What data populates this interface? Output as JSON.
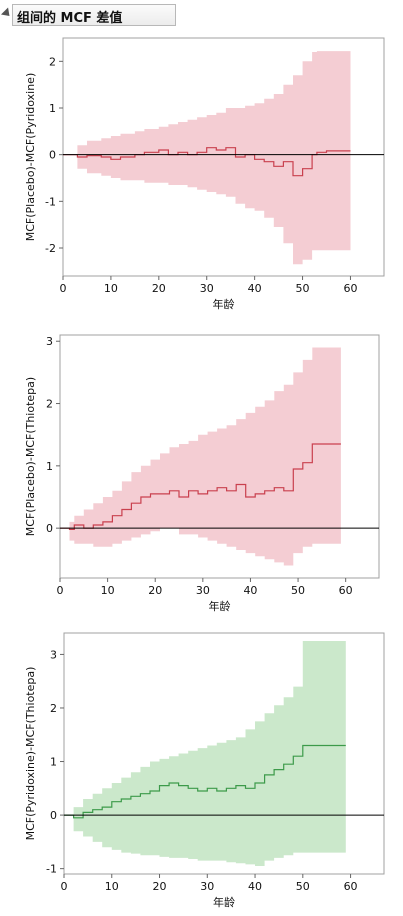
{
  "header": {
    "title": "组间的 MCF 差值"
  },
  "chart_data": [
    {
      "type": "line",
      "xlabel": "年龄",
      "ylabel": "MCF(Placebo)-MCF(Pyridoxine)",
      "xlim": [
        0,
        67
      ],
      "ylim": [
        -2.6,
        2.5
      ],
      "xticks": [
        0,
        10,
        20,
        30,
        40,
        50,
        60
      ],
      "yticks": [
        -2,
        -1,
        0,
        1,
        2
      ],
      "line_color": "#c9404e",
      "band_color": "#f4cdd3",
      "series": [
        {
          "x": [
            0,
            3,
            5,
            8,
            10,
            12,
            15,
            17,
            20,
            22,
            24,
            26,
            28,
            30,
            32,
            34,
            36,
            38,
            40,
            42,
            44,
            46,
            48,
            50,
            52,
            53,
            55,
            60
          ],
          "y": [
            0,
            -0.05,
            -0.02,
            -0.05,
            -0.1,
            -0.05,
            0,
            0.05,
            0.1,
            0,
            0.05,
            0,
            0.05,
            0.15,
            0.1,
            0.15,
            -0.05,
            0,
            -0.1,
            -0.15,
            -0.25,
            -0.15,
            -0.45,
            -0.3,
            0,
            0.05,
            0.08,
            0.08
          ],
          "upper": [
            0,
            0.2,
            0.3,
            0.35,
            0.4,
            0.45,
            0.5,
            0.55,
            0.6,
            0.65,
            0.7,
            0.75,
            0.8,
            0.85,
            0.9,
            1.0,
            1.0,
            1.05,
            1.1,
            1.2,
            1.3,
            1.5,
            1.7,
            2.0,
            2.2,
            2.22,
            2.22,
            2.22
          ],
          "lower": [
            0,
            -0.3,
            -0.4,
            -0.45,
            -0.5,
            -0.55,
            -0.55,
            -0.6,
            -0.6,
            -0.65,
            -0.65,
            -0.7,
            -0.75,
            -0.8,
            -0.85,
            -0.9,
            -1.05,
            -1.15,
            -1.2,
            -1.35,
            -1.55,
            -1.9,
            -2.35,
            -2.25,
            -2.05,
            -2.05,
            -2.05,
            -2.05
          ]
        }
      ]
    },
    {
      "type": "line",
      "xlabel": "年龄",
      "ylabel": "MCF(Placebo)-MCF(Thiotepa)",
      "xlim": [
        0,
        67
      ],
      "ylim": [
        -0.8,
        3.1
      ],
      "xticks": [
        0,
        10,
        20,
        30,
        40,
        50,
        60
      ],
      "yticks": [
        0,
        1,
        2,
        3
      ],
      "line_color": "#c9404e",
      "band_color": "#f4cdd3",
      "series": [
        {
          "x": [
            0,
            2,
            3,
            5,
            7,
            9,
            11,
            13,
            15,
            17,
            19,
            21,
            23,
            25,
            27,
            29,
            31,
            33,
            35,
            37,
            39,
            41,
            43,
            45,
            47,
            49,
            51,
            53,
            55,
            59
          ],
          "y": [
            0,
            -0.02,
            0.05,
            0,
            0.05,
            0.1,
            0.2,
            0.3,
            0.4,
            0.5,
            0.55,
            0.55,
            0.6,
            0.5,
            0.6,
            0.55,
            0.6,
            0.65,
            0.6,
            0.7,
            0.5,
            0.55,
            0.6,
            0.65,
            0.6,
            0.95,
            1.05,
            1.35,
            1.35,
            1.35
          ],
          "upper": [
            0,
            0.1,
            0.2,
            0.3,
            0.4,
            0.5,
            0.6,
            0.75,
            0.9,
            1.0,
            1.1,
            1.2,
            1.3,
            1.35,
            1.4,
            1.5,
            1.55,
            1.6,
            1.65,
            1.75,
            1.85,
            1.95,
            2.05,
            2.2,
            2.3,
            2.5,
            2.7,
            2.9,
            2.9,
            2.9
          ],
          "lower": [
            0,
            -0.2,
            -0.25,
            -0.25,
            -0.3,
            -0.3,
            -0.25,
            -0.2,
            -0.15,
            -0.1,
            -0.05,
            0,
            0,
            -0.1,
            -0.1,
            -0.15,
            -0.2,
            -0.25,
            -0.3,
            -0.35,
            -0.4,
            -0.45,
            -0.5,
            -0.55,
            -0.6,
            -0.4,
            -0.3,
            -0.25,
            -0.25,
            -0.25
          ]
        }
      ]
    },
    {
      "type": "line",
      "xlabel": "年龄",
      "ylabel": "MCF(Pyridoxine)-MCF(Thiotepa)",
      "xlim": [
        0,
        67
      ],
      "ylim": [
        -1.1,
        3.4
      ],
      "xticks": [
        0,
        10,
        20,
        30,
        40,
        50,
        60
      ],
      "yticks": [
        -1,
        0,
        1,
        2,
        3
      ],
      "line_color": "#3c9a4a",
      "band_color": "#cbe8cb",
      "series": [
        {
          "x": [
            0,
            2,
            4,
            6,
            8,
            10,
            12,
            14,
            16,
            18,
            20,
            22,
            24,
            26,
            28,
            30,
            32,
            34,
            36,
            38,
            40,
            42,
            44,
            46,
            48,
            50,
            55,
            59
          ],
          "y": [
            0,
            -0.05,
            0.05,
            0.1,
            0.15,
            0.25,
            0.3,
            0.35,
            0.4,
            0.45,
            0.55,
            0.6,
            0.55,
            0.5,
            0.45,
            0.5,
            0.45,
            0.5,
            0.55,
            0.5,
            0.6,
            0.75,
            0.85,
            0.95,
            1.1,
            1.3,
            1.3,
            1.3
          ],
          "upper": [
            0,
            0.15,
            0.3,
            0.4,
            0.5,
            0.6,
            0.7,
            0.8,
            0.9,
            1.0,
            1.05,
            1.1,
            1.15,
            1.2,
            1.25,
            1.3,
            1.35,
            1.4,
            1.45,
            1.6,
            1.75,
            1.9,
            2.05,
            2.2,
            2.4,
            3.25,
            3.25,
            3.25
          ],
          "lower": [
            0,
            -0.3,
            -0.4,
            -0.5,
            -0.6,
            -0.65,
            -0.7,
            -0.72,
            -0.75,
            -0.75,
            -0.78,
            -0.8,
            -0.8,
            -0.82,
            -0.85,
            -0.85,
            -0.85,
            -0.88,
            -0.9,
            -0.92,
            -0.95,
            -0.85,
            -0.8,
            -0.75,
            -0.7,
            -0.7,
            -0.7,
            -0.7
          ]
        }
      ]
    }
  ]
}
